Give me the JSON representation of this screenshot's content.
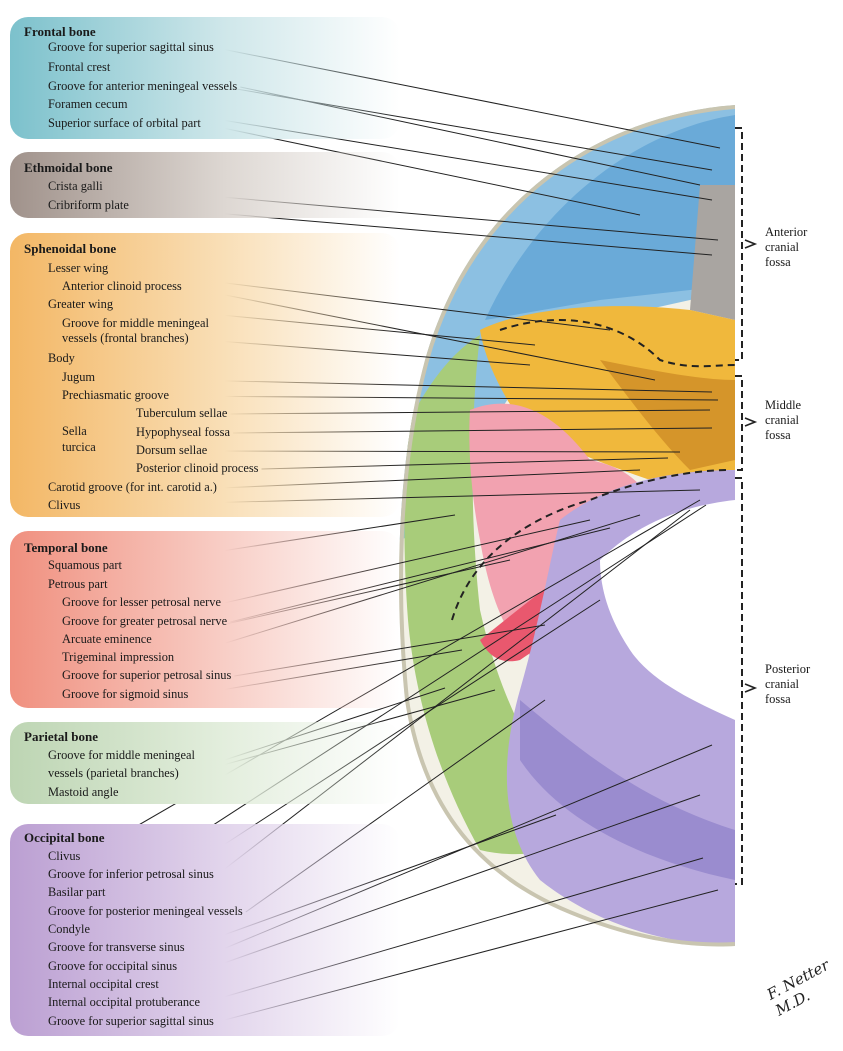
{
  "groups": [
    {
      "title": "Frontal bone",
      "color": "#6fb9c5",
      "labels": [
        "Groove for superior sagittal sinus",
        "Frontal crest",
        "Groove for anterior meningeal vessels",
        "Foramen cecum",
        "Superior surface of orbital part"
      ]
    },
    {
      "title": "Ethmoidal bone",
      "color": "#9c8f88",
      "labels": [
        "Crista galli",
        "Cribriform plate"
      ]
    },
    {
      "title": "Sphenoidal bone",
      "color": "#f0b45a",
      "labels": [
        "Lesser wing",
        "Anterior clinoid process",
        "Greater wing",
        "Groove for middle meningeal",
        "vessels (frontal branches)",
        "Body",
        "Jugum",
        "Prechiasmatic groove",
        "Sella",
        "turcica",
        "Tuberculum sellae",
        "Hypophyseal fossa",
        "Dorsum sellae",
        "Posterior clinoid process",
        "Carotid groove (for int. carotid a.)",
        "Clivus"
      ]
    },
    {
      "title": "Temporal bone",
      "color": "#ee8e80",
      "labels": [
        "Squamous part",
        "Petrous part",
        "Groove for lesser petrosal nerve",
        "Groove for greater petrosal nerve",
        "Arcuate eminence",
        "Trigeminal impression",
        "Groove for superior petrosal sinus",
        "Groove for sigmoid sinus"
      ]
    },
    {
      "title": "Parietal bone",
      "color": "#b9d2b0",
      "labels": [
        "Groove for middle meningeal",
        "vessels (parietal branches)",
        "Mastoid angle"
      ]
    },
    {
      "title": "Occipital bone",
      "color": "#b89bd0",
      "labels": [
        "Clivus",
        "Groove for inferior petrosal sinus",
        "Basilar part",
        "Groove for posterior meningeal vessels",
        "Condyle",
        "Groove for transverse sinus",
        "Groove for occipital sinus",
        "Internal occipital crest",
        "Internal occipital protuberance",
        "Groove for superior sagittal sinus"
      ]
    }
  ],
  "fossae": [
    {
      "lines": [
        "Anterior",
        "cranial",
        "fossa"
      ]
    },
    {
      "lines": [
        "Middle",
        "cranial",
        "fossa"
      ]
    },
    {
      "lines": [
        "Posterior",
        "cranial",
        "fossa"
      ]
    }
  ],
  "signature": "F. Netter M.D."
}
